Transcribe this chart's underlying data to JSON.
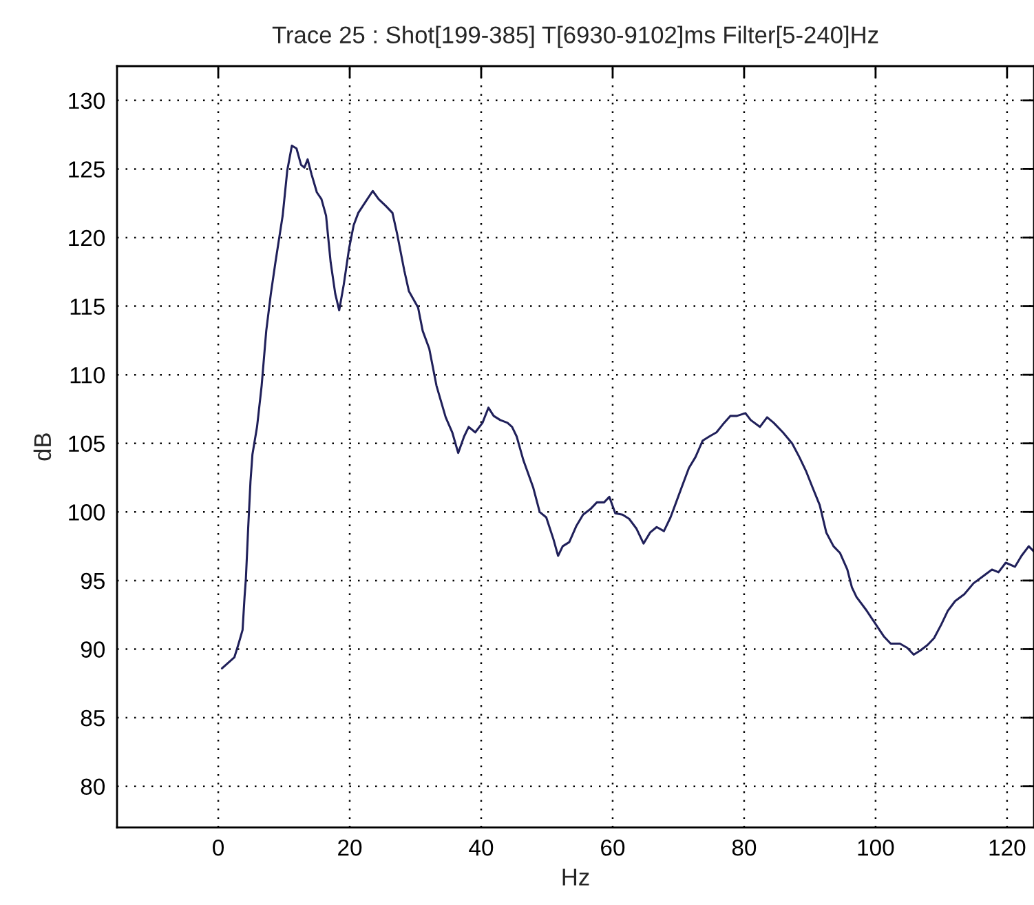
{
  "chart_data": {
    "type": "line",
    "title": "Trace 25 : Shot[199-385] T[6930-9102]ms Filter[5-240]Hz",
    "xlabel": "Hz",
    "ylabel": "dB",
    "series": [
      {
        "color": "#20205a",
        "x": [
          0.57,
          2.45,
          3.1,
          3.7,
          4.0,
          4.2,
          4.55,
          4.9,
          5.2,
          5.9,
          6.6,
          7.3,
          8.0,
          8.7,
          9.8,
          10.5,
          11.2,
          11.9,
          12.6,
          13.1,
          13.6,
          14.2,
          15.0,
          15.7,
          16.4,
          17.1,
          17.8,
          18.4,
          19.1,
          19.9,
          20.6,
          21.3,
          22.4,
          23.5,
          24.4,
          25.5,
          26.5,
          27.2,
          28.3,
          29.0,
          30.4,
          31.1,
          32.1,
          33.2,
          34.6,
          35.6,
          36.5,
          37.4,
          38.1,
          39.1,
          40.2,
          41.1,
          41.9,
          42.9,
          44.0,
          44.7,
          45.4,
          46.4,
          47.9,
          48.9,
          49.9,
          51.0,
          51.7,
          52.4,
          53.4,
          54.5,
          55.5,
          56.6,
          57.6,
          58.7,
          59.5,
          60.4,
          61.5,
          62.5,
          63.6,
          64.7,
          65.7,
          66.7,
          67.8,
          68.8,
          69.5,
          70.5,
          71.6,
          72.6,
          73.7,
          74.7,
          75.8,
          76.8,
          77.9,
          78.9,
          80.2,
          81.0,
          82.4,
          83.5,
          84.5,
          85.9,
          87.3,
          88.4,
          89.4,
          90.4,
          91.5,
          92.5,
          93.6,
          94.6,
          95.7,
          96.4,
          97.1,
          98.5,
          99.9,
          101.3,
          102.3,
          103.7,
          104.8,
          105.8,
          106.8,
          107.9,
          108.9,
          110.0,
          111.0,
          112.1,
          113.5,
          114.9,
          116.3,
          117.7,
          118.7,
          119.8,
          121.2,
          122.2,
          123.3,
          124.1
        ],
        "values": [
          88.6,
          89.4,
          90.4,
          91.4,
          93.8,
          95.1,
          98.8,
          102.2,
          104.2,
          106.2,
          109.2,
          113.2,
          115.9,
          118.2,
          121.6,
          124.9,
          126.7,
          126.5,
          125.3,
          125.1,
          125.7,
          124.6,
          123.3,
          122.8,
          121.6,
          118.2,
          115.9,
          114.7,
          116.6,
          119.2,
          120.9,
          121.8,
          122.6,
          123.4,
          122.8,
          122.3,
          121.8,
          120.3,
          117.6,
          116.1,
          114.9,
          113.2,
          111.9,
          109.2,
          106.9,
          105.8,
          104.3,
          105.5,
          106.2,
          105.8,
          106.5,
          107.6,
          107.0,
          106.7,
          106.5,
          106.2,
          105.5,
          103.8,
          101.8,
          100.0,
          99.6,
          98.0,
          96.8,
          97.5,
          97.8,
          99.0,
          99.8,
          100.2,
          100.7,
          100.7,
          101.1,
          99.9,
          99.8,
          99.5,
          98.8,
          97.7,
          98.5,
          98.9,
          98.6,
          99.6,
          100.5,
          101.8,
          103.2,
          104.0,
          105.2,
          105.5,
          105.8,
          106.4,
          107.0,
          107.0,
          107.2,
          106.7,
          106.2,
          106.9,
          106.5,
          105.8,
          105.0,
          104.0,
          103.0,
          101.8,
          100.5,
          98.5,
          97.5,
          97.0,
          95.8,
          94.5,
          93.8,
          92.9,
          91.9,
          90.9,
          90.4,
          90.4,
          90.1,
          89.6,
          89.9,
          90.3,
          90.8,
          91.8,
          92.8,
          93.5,
          94.0,
          94.8,
          95.3,
          95.8,
          95.6,
          96.3,
          96.0,
          96.8,
          97.5,
          97.1
        ]
      }
    ],
    "xlim": [
      -15.4,
      124.1
    ],
    "ylim": [
      77,
      132.5
    ],
    "xticks": [
      0,
      20,
      40,
      60,
      80,
      100,
      120
    ],
    "yticks": [
      80,
      85,
      90,
      95,
      100,
      105,
      110,
      115,
      120,
      125,
      130
    ],
    "grid": true,
    "legend": false,
    "line_style": "solid"
  }
}
